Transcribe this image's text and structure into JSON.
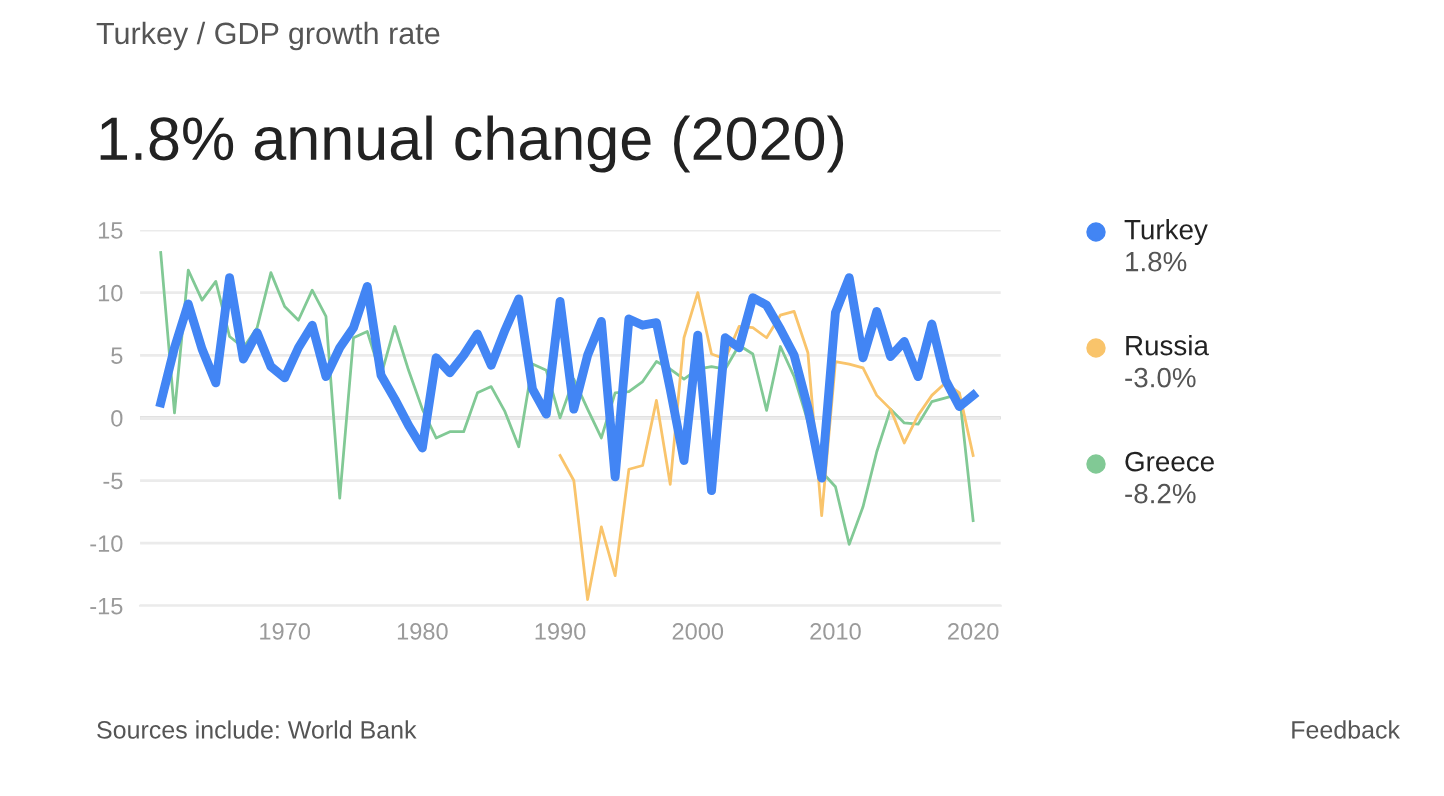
{
  "chart_data": {
    "type": "line",
    "subtitle": "Turkey / GDP growth rate",
    "title": "1.8% annual change (2020)",
    "x": [
      1961,
      1962,
      1963,
      1964,
      1965,
      1966,
      1967,
      1968,
      1969,
      1970,
      1971,
      1972,
      1973,
      1974,
      1975,
      1976,
      1977,
      1978,
      1979,
      1980,
      1981,
      1982,
      1983,
      1984,
      1985,
      1986,
      1987,
      1988,
      1989,
      1990,
      1991,
      1992,
      1993,
      1994,
      1995,
      1996,
      1997,
      1998,
      1999,
      2000,
      2001,
      2002,
      2003,
      2004,
      2005,
      2006,
      2007,
      2008,
      2009,
      2010,
      2011,
      2012,
      2013,
      2014,
      2015,
      2016,
      2017,
      2018,
      2019,
      2020
    ],
    "series": [
      {
        "name": "Turkey",
        "color": "#4285f4",
        "values": [
          1.2,
          5.6,
          9.1,
          5.5,
          2.8,
          11.2,
          4.7,
          6.8,
          4.1,
          3.2,
          5.6,
          7.4,
          3.3,
          5.6,
          7.2,
          10.5,
          3.4,
          1.5,
          -0.6,
          -2.4,
          4.8,
          3.6,
          5.0,
          6.7,
          4.2,
          7.0,
          9.5,
          2.3,
          0.3,
          9.3,
          0.7,
          5.0,
          7.7,
          -4.7,
          7.9,
          7.4,
          7.6,
          2.3,
          -3.4,
          6.6,
          -5.8,
          6.4,
          5.6,
          9.6,
          9.0,
          7.1,
          5.0,
          0.8,
          -4.8,
          8.4,
          11.2,
          4.8,
          8.5,
          4.9,
          6.1,
          3.3,
          7.5,
          3.0,
          0.9,
          1.8
        ]
      },
      {
        "name": "Russia",
        "color": "#f9c46b",
        "values": [
          null,
          null,
          null,
          null,
          null,
          null,
          null,
          null,
          null,
          null,
          null,
          null,
          null,
          null,
          null,
          null,
          null,
          null,
          null,
          null,
          null,
          null,
          null,
          null,
          null,
          null,
          null,
          null,
          null,
          -3.0,
          -5.0,
          -14.5,
          -8.7,
          -12.6,
          -4.1,
          -3.8,
          1.4,
          -5.3,
          6.4,
          10.0,
          5.1,
          4.7,
          7.3,
          7.2,
          6.4,
          8.2,
          8.5,
          5.2,
          -7.8,
          4.5,
          4.3,
          4.0,
          1.8,
          0.7,
          -2.0,
          0.2,
          1.8,
          2.8,
          2.0,
          -3.0
        ]
      },
      {
        "name": "Greece",
        "color": "#81c995",
        "values": [
          13.2,
          0.4,
          11.8,
          9.4,
          10.9,
          6.5,
          5.6,
          7.2,
          11.6,
          8.9,
          7.8,
          10.2,
          8.1,
          -6.4,
          6.4,
          6.9,
          3.4,
          7.3,
          3.8,
          0.7,
          -1.6,
          -1.1,
          -1.1,
          2.0,
          2.5,
          0.5,
          -2.3,
          4.3,
          3.8,
          0.0,
          3.1,
          0.7,
          -1.6,
          2.0,
          2.1,
          2.9,
          4.5,
          3.9,
          3.1,
          3.9,
          4.1,
          3.9,
          5.8,
          5.1,
          0.6,
          5.7,
          3.3,
          -0.3,
          -4.3,
          -5.5,
          -10.1,
          -7.1,
          -2.7,
          0.7,
          -0.4,
          -0.5,
          1.3,
          1.6,
          1.9,
          -8.2
        ]
      }
    ],
    "xlim": [
      1959.5,
      2022
    ],
    "xticks": [
      1970,
      1980,
      1990,
      2000,
      2010,
      2020
    ],
    "ylim": [
      -15,
      15
    ],
    "yticks": [
      -15,
      -10,
      -5,
      0,
      5,
      10,
      15
    ],
    "grid": "y",
    "legend": "right",
    "marker": "none",
    "line_style": "solid",
    "ref_lines": [
      {
        "axis": "y",
        "value": 0,
        "color": "#b0b0b0"
      }
    ],
    "annotations": [
      "1.8%",
      "-3.0%",
      "-8.2%",
      "Sources include: World Bank",
      "Feedback"
    ]
  }
}
